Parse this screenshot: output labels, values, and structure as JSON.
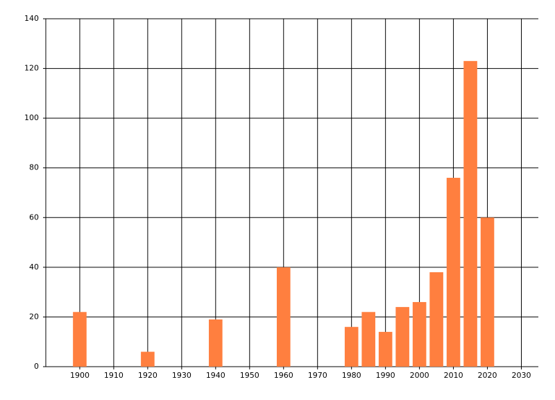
{
  "chart_data": {
    "type": "bar",
    "x": [
      1900,
      1920,
      1940,
      1960,
      1980,
      1985,
      1990,
      1995,
      2000,
      2005,
      2010,
      2015,
      2020
    ],
    "values": [
      22,
      6,
      19,
      40,
      16,
      22,
      14,
      24,
      26,
      38,
      76,
      123,
      60
    ],
    "color": "#ff7f3f",
    "xlim": [
      1890,
      2035
    ],
    "xticks": [
      1900,
      1910,
      1920,
      1930,
      1940,
      1950,
      1960,
      1970,
      1980,
      1990,
      2000,
      2010,
      2020,
      2030
    ],
    "ylim": [
      0,
      140
    ],
    "yticks": [
      0,
      20,
      40,
      60,
      80,
      100,
      120,
      140
    ],
    "grid": true
  }
}
